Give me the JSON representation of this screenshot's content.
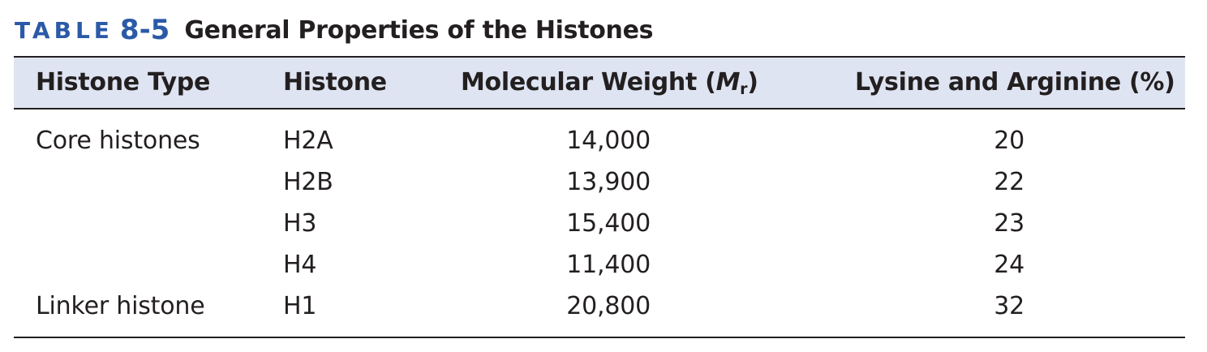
{
  "caption": {
    "label_word": "TABLE",
    "label_number": "8-5",
    "title": "General Properties of the Histones"
  },
  "columns": {
    "histone_type": "Histone Type",
    "histone": "Histone",
    "molecular_weight_prefix": "Molecular Weight (",
    "molecular_weight_symbol": "M",
    "molecular_weight_subscript": "r",
    "molecular_weight_suffix": ")",
    "lysine_arginine": "Lysine and Arginine (%)"
  },
  "rows": [
    {
      "histone_type": "Core histones",
      "histone": "H2A",
      "molecular_weight": "14,000",
      "lysine_arginine": "20"
    },
    {
      "histone_type": "",
      "histone": "H2B",
      "molecular_weight": "13,900",
      "lysine_arginine": "22"
    },
    {
      "histone_type": "",
      "histone": "H3",
      "molecular_weight": "15,400",
      "lysine_arginine": "23"
    },
    {
      "histone_type": "",
      "histone": "H4",
      "molecular_weight": "11,400",
      "lysine_arginine": "24"
    },
    {
      "histone_type": "Linker histone",
      "histone": "H1",
      "molecular_weight": "20,800",
      "lysine_arginine": "32"
    }
  ],
  "colors": {
    "caption_accent": "#2b5aa7",
    "header_band": "#dee4f1",
    "text": "#231f20"
  }
}
